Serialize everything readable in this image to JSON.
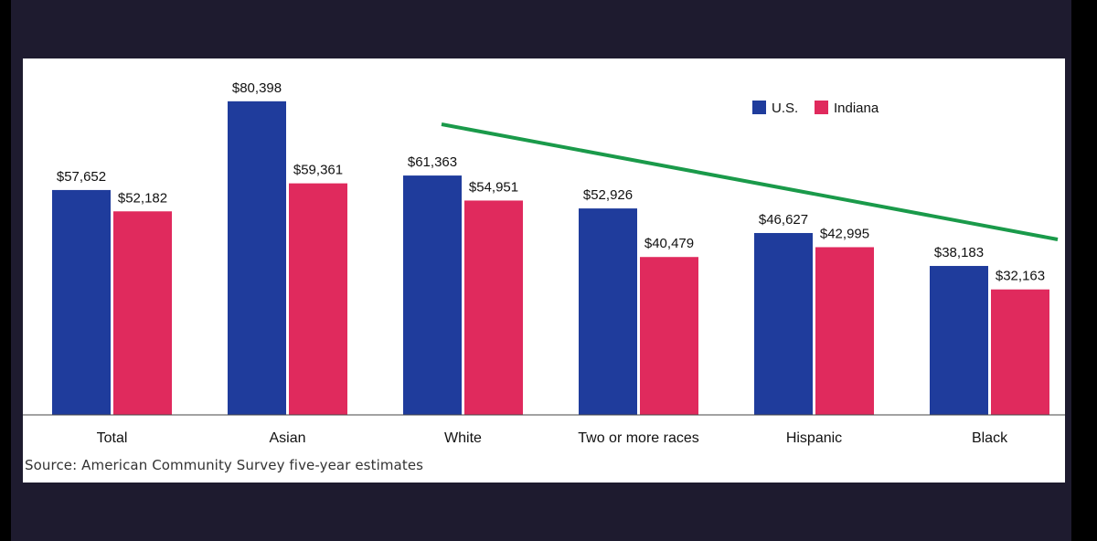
{
  "chart_data": {
    "type": "bar",
    "categories": [
      "Total",
      "Asian",
      "White",
      "Two or more races",
      "Hispanic",
      "Black"
    ],
    "series": [
      {
        "name": "U.S.",
        "color": "#1f3c9c",
        "values": [
          57652,
          80398,
          61363,
          52926,
          46627,
          38183
        ],
        "labels": [
          "$57,652",
          "$80,398",
          "$61,363",
          "$52,926",
          "$46,627",
          "$38,183"
        ]
      },
      {
        "name": "Indiana",
        "color": "#e02a5d",
        "values": [
          52182,
          59361,
          54951,
          40479,
          42995,
          32163
        ],
        "labels": [
          "$52,182",
          "$59,361",
          "$54,951",
          "$40,479",
          "$42,995",
          "$32,163"
        ]
      }
    ],
    "ylim": [
      0,
      82000
    ],
    "legend_position": "top-right",
    "trend_line": {
      "color": "#1a9a4a",
      "description": "hand-drawn downward trend annotation"
    },
    "source": "Source: American Community Survey five-year estimates"
  }
}
